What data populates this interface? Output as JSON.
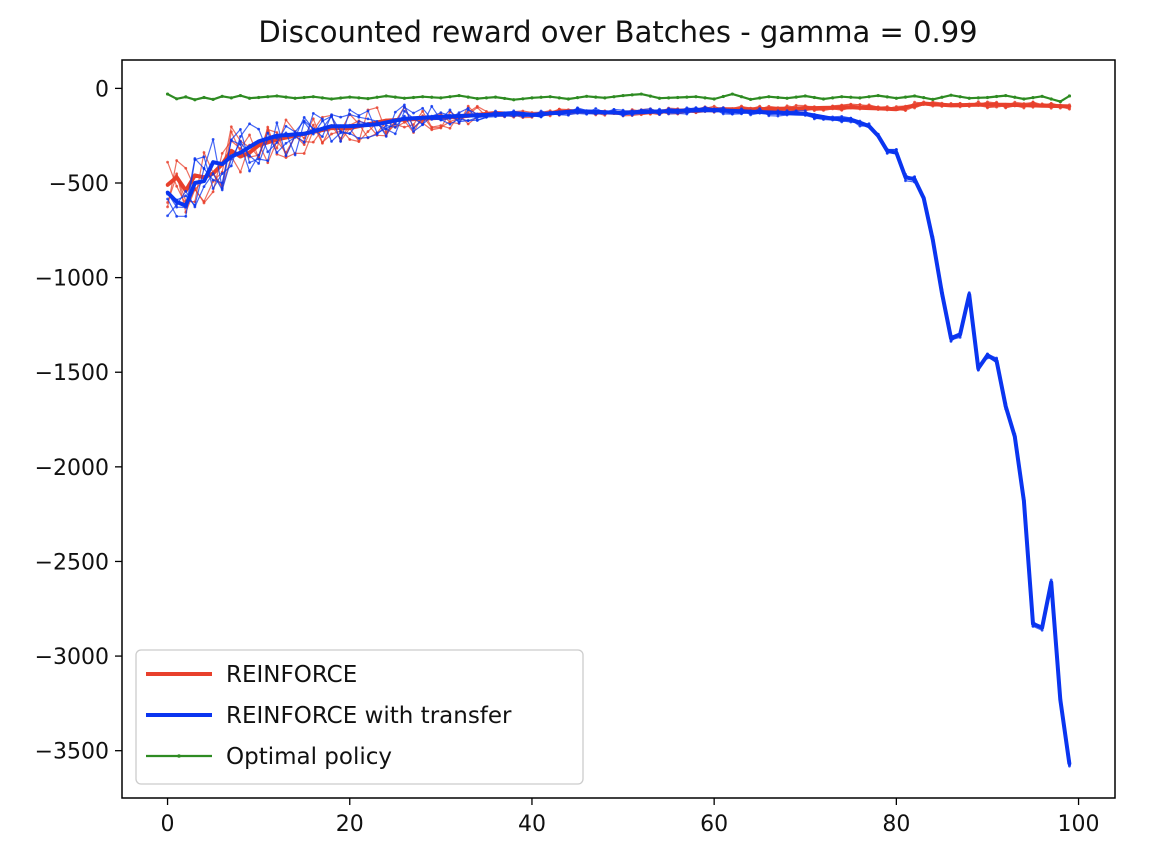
{
  "chart_data": {
    "type": "line",
    "title": "Discounted reward over Batches - gamma = 0.99",
    "xlabel": "",
    "ylabel": "",
    "xlim": [
      -5,
      104
    ],
    "ylim": [
      -3750,
      150
    ],
    "xticks": [
      0,
      20,
      40,
      60,
      80,
      100
    ],
    "yticks": [
      0,
      -500,
      -1000,
      -1500,
      -2000,
      -2500,
      -3000,
      -3500
    ],
    "xtick_labels": [
      "0",
      "20",
      "40",
      "60",
      "80",
      "100"
    ],
    "ytick_labels": [
      "0",
      "−500",
      "−1000",
      "−1500",
      "−2000",
      "−2500",
      "−3000",
      "−3500"
    ],
    "grid": false,
    "legend_position": "lower-left",
    "series": [
      {
        "name": "REINFORCE",
        "color": "#e8402c",
        "anchors": [
          [
            0,
            -510
          ],
          [
            1,
            -470
          ],
          [
            2,
            -540
          ],
          [
            3,
            -460
          ],
          [
            4,
            -470
          ],
          [
            5,
            -450
          ],
          [
            6,
            -400
          ],
          [
            7,
            -330
          ],
          [
            8,
            -360
          ],
          [
            9,
            -340
          ],
          [
            10,
            -300
          ],
          [
            12,
            -270
          ],
          [
            15,
            -240
          ],
          [
            18,
            -210
          ],
          [
            20,
            -210
          ],
          [
            24,
            -170
          ],
          [
            28,
            -160
          ],
          [
            32,
            -150
          ],
          [
            36,
            -130
          ],
          [
            40,
            -140
          ],
          [
            44,
            -120
          ],
          [
            50,
            -130
          ],
          [
            55,
            -120
          ],
          [
            60,
            -110
          ],
          [
            65,
            -110
          ],
          [
            70,
            -105
          ],
          [
            75,
            -100
          ],
          [
            80,
            -110
          ],
          [
            83,
            -80
          ],
          [
            86,
            -90
          ],
          [
            90,
            -85
          ],
          [
            95,
            -90
          ],
          [
            99,
            -95
          ]
        ]
      },
      {
        "name": "REINFORCE with transfer",
        "color": "#0a35f0",
        "anchors": [
          [
            0,
            -550
          ],
          [
            1,
            -600
          ],
          [
            2,
            -620
          ],
          [
            3,
            -500
          ],
          [
            4,
            -490
          ],
          [
            5,
            -390
          ],
          [
            6,
            -400
          ],
          [
            7,
            -360
          ],
          [
            8,
            -340
          ],
          [
            9,
            -310
          ],
          [
            10,
            -280
          ],
          [
            12,
            -250
          ],
          [
            15,
            -240
          ],
          [
            18,
            -200
          ],
          [
            20,
            -200
          ],
          [
            23,
            -190
          ],
          [
            26,
            -160
          ],
          [
            30,
            -150
          ],
          [
            35,
            -140
          ],
          [
            38,
            -130
          ],
          [
            40,
            -140
          ],
          [
            45,
            -120
          ],
          [
            50,
            -130
          ],
          [
            55,
            -120
          ],
          [
            60,
            -115
          ],
          [
            65,
            -125
          ],
          [
            70,
            -135
          ],
          [
            73,
            -160
          ],
          [
            75,
            -165
          ],
          [
            77,
            -200
          ],
          [
            78,
            -250
          ],
          [
            79,
            -330
          ],
          [
            80,
            -340
          ],
          [
            81,
            -470
          ],
          [
            82,
            -480
          ],
          [
            83,
            -580
          ],
          [
            84,
            -800
          ],
          [
            85,
            -1080
          ],
          [
            86,
            -1320
          ],
          [
            87,
            -1300
          ],
          [
            88,
            -1090
          ],
          [
            89,
            -1480
          ],
          [
            90,
            -1410
          ],
          [
            91,
            -1440
          ],
          [
            92,
            -1680
          ],
          [
            93,
            -1840
          ],
          [
            94,
            -2180
          ],
          [
            95,
            -2830
          ],
          [
            96,
            -2850
          ],
          [
            97,
            -2610
          ],
          [
            98,
            -3230
          ],
          [
            99,
            -3570
          ]
        ]
      },
      {
        "name": "Optimal policy",
        "color": "#2e8b22",
        "anchors": [
          [
            0,
            -30
          ],
          [
            1,
            -55
          ],
          [
            2,
            -45
          ],
          [
            3,
            -60
          ],
          [
            4,
            -48
          ],
          [
            5,
            -58
          ],
          [
            6,
            -42
          ],
          [
            7,
            -50
          ],
          [
            8,
            -38
          ],
          [
            9,
            -52
          ],
          [
            10,
            -48
          ],
          [
            12,
            -40
          ],
          [
            14,
            -52
          ],
          [
            16,
            -44
          ],
          [
            18,
            -56
          ],
          [
            20,
            -46
          ],
          [
            22,
            -54
          ],
          [
            24,
            -40
          ],
          [
            26,
            -52
          ],
          [
            28,
            -44
          ],
          [
            30,
            -50
          ],
          [
            32,
            -38
          ],
          [
            34,
            -54
          ],
          [
            36,
            -46
          ],
          [
            38,
            -60
          ],
          [
            40,
            -50
          ],
          [
            42,
            -44
          ],
          [
            44,
            -56
          ],
          [
            46,
            -42
          ],
          [
            48,
            -50
          ],
          [
            50,
            -38
          ],
          [
            52,
            -30
          ],
          [
            54,
            -52
          ],
          [
            56,
            -48
          ],
          [
            58,
            -44
          ],
          [
            60,
            -56
          ],
          [
            62,
            -30
          ],
          [
            64,
            -58
          ],
          [
            66,
            -44
          ],
          [
            68,
            -52
          ],
          [
            70,
            -40
          ],
          [
            72,
            -56
          ],
          [
            74,
            -44
          ],
          [
            76,
            -50
          ],
          [
            78,
            -38
          ],
          [
            80,
            -52
          ],
          [
            82,
            -40
          ],
          [
            84,
            -58
          ],
          [
            86,
            -36
          ],
          [
            88,
            -52
          ],
          [
            90,
            -48
          ],
          [
            92,
            -38
          ],
          [
            94,
            -56
          ],
          [
            96,
            -42
          ],
          [
            98,
            -70
          ],
          [
            99,
            -40
          ]
        ]
      }
    ]
  }
}
